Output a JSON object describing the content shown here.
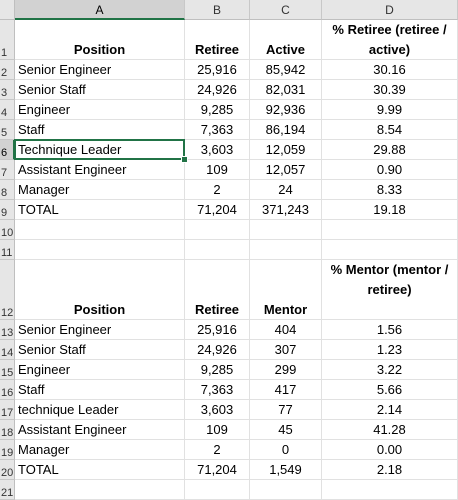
{
  "columns": [
    "A",
    "B",
    "C",
    "D"
  ],
  "rows": [
    "1",
    "2",
    "3",
    "4",
    "5",
    "6",
    "7",
    "8",
    "9",
    "10",
    "11",
    "12",
    "13",
    "14",
    "15",
    "16",
    "17",
    "18",
    "19",
    "20",
    "21"
  ],
  "table1": {
    "headers": [
      "Position",
      "Retiree",
      "Active",
      "% Retiree (retiree / active)"
    ],
    "rows": [
      [
        "Senior Engineer",
        "25,916",
        "85,942",
        "30.16"
      ],
      [
        "Senior Staff",
        "24,926",
        "82,031",
        "30.39"
      ],
      [
        "Engineer",
        "9,285",
        "92,936",
        "9.99"
      ],
      [
        "Staff",
        "7,363",
        "86,194",
        "8.54"
      ],
      [
        "Technique Leader",
        "3,603",
        "12,059",
        "29.88"
      ],
      [
        "Assistant Engineer",
        "109",
        "12,057",
        "0.90"
      ],
      [
        "Manager",
        "2",
        "24",
        "8.33"
      ],
      [
        "TOTAL",
        "71,204",
        "371,243",
        "19.18"
      ]
    ]
  },
  "table2": {
    "headers": [
      "Position",
      "Retiree",
      "Mentor",
      "% Mentor (mentor / retiree)"
    ],
    "rows": [
      [
        "Senior Engineer",
        "25,916",
        "404",
        "1.56"
      ],
      [
        "Senior Staff",
        "24,926",
        "307",
        "1.23"
      ],
      [
        "Engineer",
        "9,285",
        "299",
        "3.22"
      ],
      [
        "Staff",
        "7,363",
        "417",
        "5.66"
      ],
      [
        "technique Leader",
        "3,603",
        "77",
        "2.14"
      ],
      [
        "Assistant Engineer",
        "109",
        "45",
        "41.28"
      ],
      [
        "Manager",
        "2",
        "0",
        "0.00"
      ],
      [
        "TOTAL",
        "71,204",
        "1,549",
        "2.18"
      ]
    ]
  },
  "selected_cell": "A6",
  "accent_color": "#217346"
}
